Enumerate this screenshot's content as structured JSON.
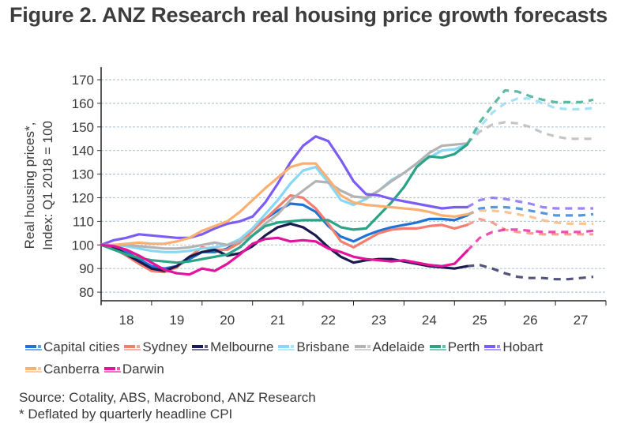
{
  "title": "Figure 2.  ANZ Research real housing price growth forecasts",
  "footer": {
    "source": "Source: Cotality, ABS, Macrobond, ANZ Research",
    "note": "* Deflated by quarterly headline CPI"
  },
  "chart_data": {
    "type": "line",
    "title": "Figure 2.  ANZ Research real housing price growth forecasts",
    "xlabel": "",
    "ylabel_line1": "Real housing prices*,",
    "ylabel_line2": "Index: Q1 2018 = 100",
    "ylim": [
      76.5,
      172
    ],
    "yticks": [
      80,
      90,
      100,
      110,
      120,
      130,
      140,
      150,
      160,
      170
    ],
    "xlim": [
      2018.0,
      2028.0
    ],
    "xtick_labels": [
      "18",
      "19",
      "20",
      "21",
      "22",
      "23",
      "24",
      "25",
      "26",
      "27"
    ],
    "grid": true,
    "legend_position": "bottom",
    "history_end": 2025.25,
    "forecast_style": "dashed",
    "x_history": [
      2018.0,
      2018.25,
      2018.5,
      2018.75,
      2019.0,
      2019.25,
      2019.5,
      2019.75,
      2020.0,
      2020.25,
      2020.5,
      2020.75,
      2021.0,
      2021.25,
      2021.5,
      2021.75,
      2022.0,
      2022.25,
      2022.5,
      2022.75,
      2023.0,
      2023.25,
      2023.5,
      2023.75,
      2024.0,
      2024.25,
      2024.5,
      2024.75,
      2025.0,
      2025.25
    ],
    "x_forecast": [
      2025.25,
      2025.5,
      2025.75,
      2026.0,
      2026.25,
      2026.5,
      2026.75,
      2027.0,
      2027.25,
      2027.5,
      2027.75
    ],
    "series": [
      {
        "name": "Capital cities",
        "color": "#1f73d6",
        "history": [
          100,
          99,
          97,
          94,
          91,
          90,
          91,
          94,
          97,
          97,
          98.5,
          102,
          107,
          111,
          114.5,
          117.5,
          117,
          114,
          108,
          103.5,
          101.5,
          104,
          106,
          107.5,
          108.5,
          109.5,
          111,
          111,
          110.5,
          112.5
        ],
        "forecast": [
          112.5,
          115.5,
          116,
          116,
          115.5,
          114.5,
          113.5,
          112.5,
          112.5,
          112.5,
          113
        ]
      },
      {
        "name": "Sydney",
        "color": "#f47f6e",
        "history": [
          100,
          98.5,
          95.5,
          92,
          89,
          88.5,
          90.5,
          95,
          99,
          98,
          98,
          101,
          106,
          111,
          116,
          121,
          120,
          115.5,
          109,
          101.5,
          99,
          102,
          105,
          106.5,
          107,
          107,
          108,
          108.5,
          107,
          108.5
        ],
        "forecast": [
          108.5,
          111,
          109.5,
          106.5,
          105.5,
          105,
          104.5,
          104.5,
          104.5,
          104.5,
          104.5
        ]
      },
      {
        "name": "Melbourne",
        "color": "#1b1a4f",
        "history": [
          100,
          99,
          96,
          93,
          90,
          89,
          91,
          95,
          97,
          98,
          95.5,
          96.5,
          99.5,
          104,
          107.5,
          109,
          107.5,
          104,
          99,
          95,
          92.5,
          93.5,
          94,
          94,
          93,
          92,
          91,
          90.5,
          90,
          91
        ],
        "forecast": [
          91,
          91.5,
          90,
          88,
          86.5,
          86,
          86,
          85.5,
          85.5,
          86,
          86.5
        ]
      },
      {
        "name": "Brisbane",
        "color": "#87d7f7",
        "history": [
          100,
          100,
          99.5,
          98.5,
          97.5,
          97,
          97,
          97.5,
          98.5,
          99,
          100,
          102.5,
          107,
          113,
          119,
          126,
          131.5,
          133,
          126.5,
          119,
          117,
          119.5,
          123,
          127.5,
          130.5,
          134.5,
          137,
          140,
          140.5,
          142.5
        ],
        "forecast": [
          142.5,
          150,
          156,
          160,
          162,
          162,
          160,
          158,
          157.5,
          157.5,
          158
        ]
      },
      {
        "name": "Adelaide",
        "color": "#b3b3b3",
        "history": [
          100,
          100,
          100,
          99.5,
          99,
          98.5,
          98.5,
          99,
          100,
          101,
          100,
          101.5,
          104,
          109,
          113,
          119,
          123,
          127,
          126.5,
          123,
          120.5,
          120,
          123,
          127,
          130.5,
          134.5,
          139,
          142,
          142.5,
          143
        ],
        "forecast": [
          143,
          148,
          151,
          152,
          151.5,
          150,
          147.5,
          146,
          145,
          145,
          145
        ]
      },
      {
        "name": "Perth",
        "color": "#2aa386",
        "history": [
          100,
          98,
          96,
          94.5,
          93.5,
          93,
          92.5,
          93,
          94,
          95,
          96,
          99,
          104,
          108,
          109.5,
          110,
          110.5,
          110.5,
          110.5,
          107.5,
          106.5,
          107,
          112.5,
          118,
          124.5,
          133,
          137.5,
          137,
          138.5,
          142.5
        ],
        "forecast": [
          142.5,
          152,
          159,
          165.5,
          165,
          163,
          161.5,
          160.5,
          160.5,
          160.5,
          161.5
        ]
      },
      {
        "name": "Hobart",
        "color": "#7b5cf5",
        "history": [
          100,
          102,
          103,
          104.5,
          104,
          103.5,
          103,
          103,
          104.5,
          107,
          109,
          110,
          112,
          118,
          126,
          135,
          142,
          146,
          144,
          136,
          127,
          121.5,
          121,
          119.5,
          118.5,
          117.5,
          116.5,
          115.5,
          116,
          116
        ],
        "forecast": [
          116,
          119,
          120,
          119.5,
          118.5,
          117.5,
          116,
          115.5,
          115.5,
          115.5,
          115.5
        ]
      },
      {
        "name": "Canberra",
        "color": "#fbb073",
        "history": [
          100,
          100,
          100.5,
          101,
          100.5,
          100.5,
          101.5,
          103,
          106,
          108,
          110,
          114,
          119,
          124,
          128.5,
          133,
          134.5,
          134.5,
          128,
          121,
          118,
          117,
          116.5,
          116,
          115.5,
          115,
          114,
          112.5,
          112,
          113
        ],
        "forecast": [
          113,
          114.5,
          114.5,
          114,
          113,
          112,
          110.5,
          109.5,
          109,
          109,
          109
        ]
      },
      {
        "name": "Darwin",
        "color": "#e3149c",
        "history": [
          100,
          99.5,
          98,
          95.5,
          92.5,
          89.5,
          88,
          87.5,
          90,
          89,
          92,
          96,
          100.5,
          102.5,
          103,
          101.5,
          102,
          101.5,
          98.5,
          97,
          95,
          94,
          93.5,
          93,
          93.5,
          92.5,
          91.5,
          91,
          92,
          97.5
        ],
        "forecast": [
          97.5,
          103,
          105.5,
          106.5,
          106.5,
          106,
          105.5,
          105.5,
          105.5,
          105.5,
          106
        ]
      }
    ]
  }
}
